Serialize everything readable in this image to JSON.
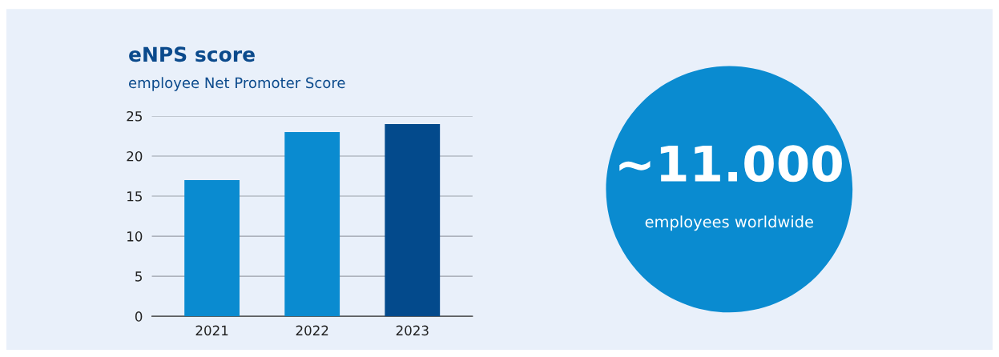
{
  "chart_data": [
    {
      "type": "bar",
      "title": "eNPS score",
      "subtitle": "employee Net Promoter Score",
      "categories": [
        "2021",
        "2022",
        "2023"
      ],
      "values": [
        17,
        23,
        24
      ],
      "colors": [
        "#0a8bd0",
        "#0a8bd0",
        "#034a8c"
      ],
      "ylim": [
        0,
        25
      ],
      "yticks": [
        0,
        5,
        10,
        15,
        20,
        25
      ],
      "grid": "y"
    },
    {
      "type": "other",
      "color": "#0a8bd0",
      "annotations": [
        "~11.000",
        "employees worldwide"
      ]
    }
  ]
}
